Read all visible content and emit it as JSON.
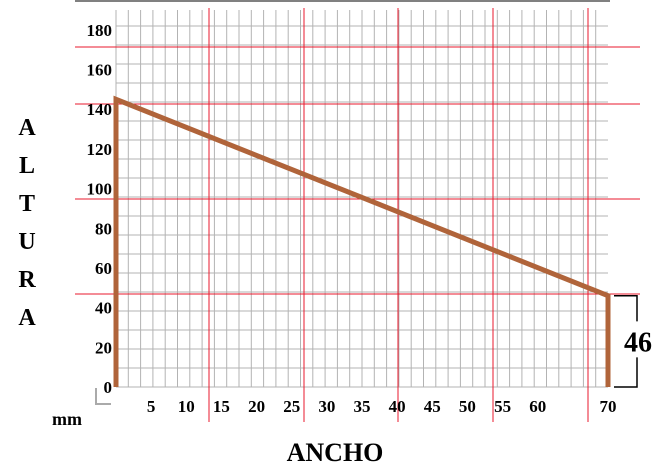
{
  "chart_data": {
    "type": "line",
    "xlabel": "ANCHO",
    "ylabel": "ALTURA",
    "unit": "mm",
    "xlim": [
      0,
      70
    ],
    "ylim": [
      0,
      190
    ],
    "x_ticks": [
      5,
      10,
      15,
      20,
      25,
      30,
      35,
      40,
      45,
      50,
      55,
      60,
      70
    ],
    "y_ticks": [
      0,
      20,
      40,
      60,
      80,
      100,
      120,
      140,
      160,
      180
    ],
    "series": [
      {
        "x": [
          0,
          0,
          70,
          70
        ],
        "y": [
          0,
          145,
          46,
          0
        ]
      }
    ],
    "annotation": {
      "label": "46",
      "value": 46
    },
    "colors": {
      "profile": "#b0643a",
      "grid_minor": "#b3b3b3",
      "grid_major": "#e8192c"
    },
    "grid": true
  }
}
